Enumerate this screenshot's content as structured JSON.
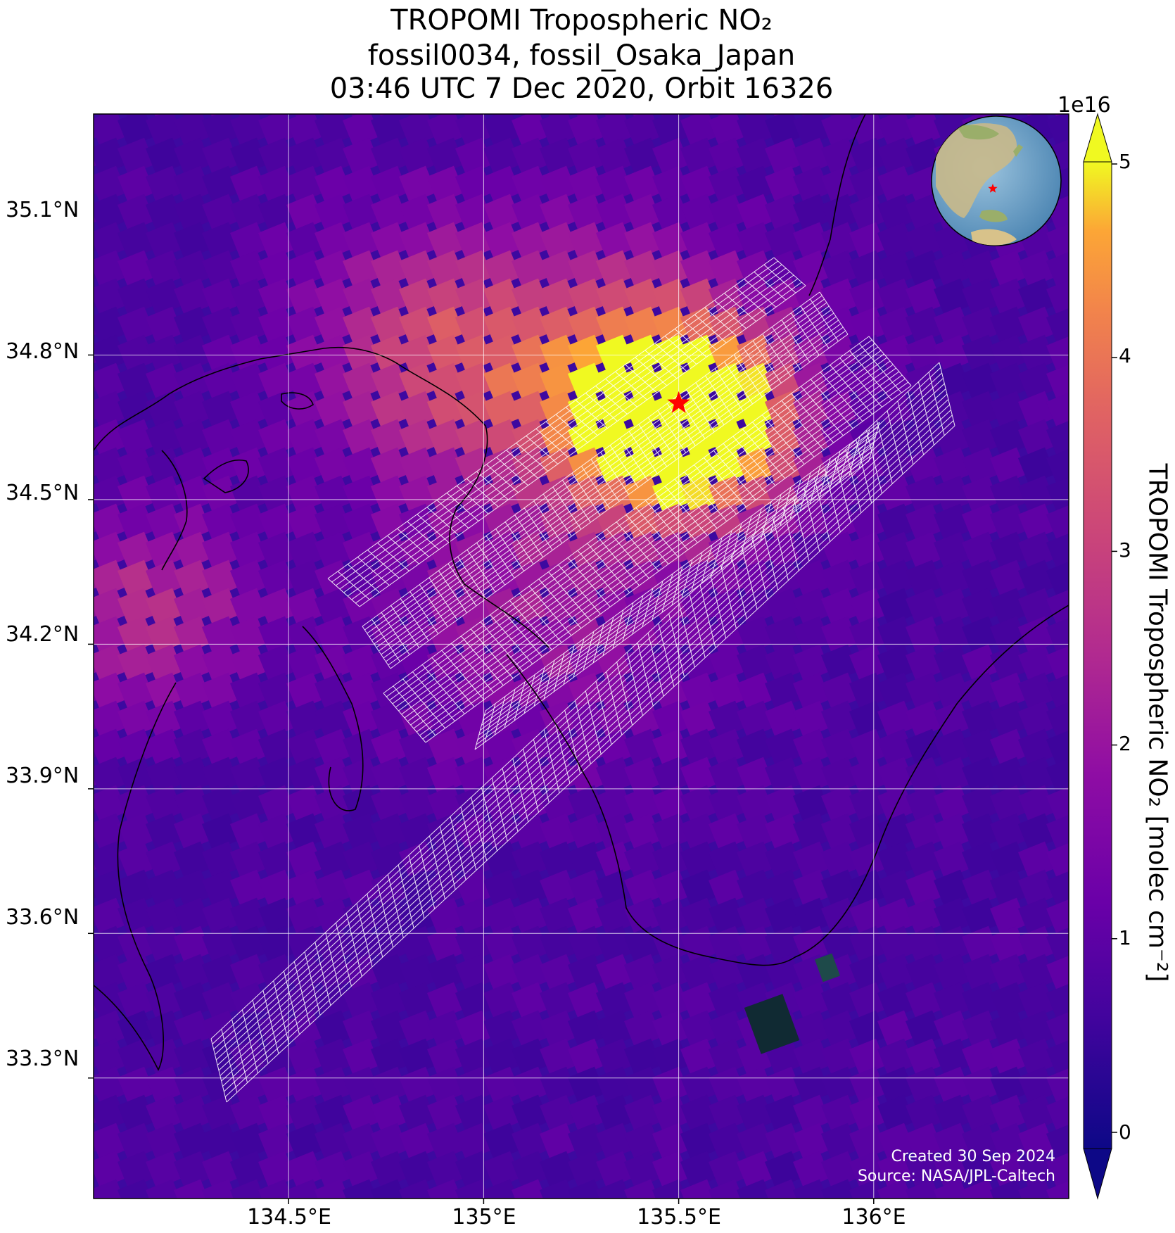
{
  "title": {
    "line1": "TROPOMI Tropospheric NO₂",
    "line2": "fossil0034, fossil_Osaka_Japan",
    "line3": "03:46 UTC 7 Dec 2020, Orbit 16326"
  },
  "axes": {
    "latitude_ticks": [
      "35.1°N",
      "34.8°N",
      "34.5°N",
      "34.2°N",
      "33.9°N",
      "33.6°N",
      "33.3°N"
    ],
    "longitude_ticks": [
      "134.5°E",
      "135°E",
      "135.5°E",
      "136°E"
    ],
    "lat_range": [
      33.05,
      35.3
    ],
    "lon_range": [
      134.0,
      136.5
    ]
  },
  "colorbar": {
    "label": "TROPOMI Tropospheric NO₂ [molec cm⁻²]",
    "exponent": "1e16",
    "ticks": [
      "0",
      "1",
      "2",
      "3",
      "4",
      "5"
    ],
    "range": [
      0,
      5
    ],
    "colormap": "plasma",
    "extend": "both"
  },
  "target_marker": {
    "lon": 135.5,
    "lat": 34.7,
    "color": "#ff0000",
    "icon": "star-icon"
  },
  "credit": {
    "line1": "Created 30 Sep 2024",
    "line2": "Source: NASA/JPL-Caltech"
  },
  "inset": {
    "description_icon": "globe-icon",
    "marker_color": "#ff0000"
  },
  "colors": {
    "background_low": "#3d09a0",
    "gridline": "#ffffff",
    "coast": "#000000",
    "footprint_grid": "#ffffff"
  }
}
